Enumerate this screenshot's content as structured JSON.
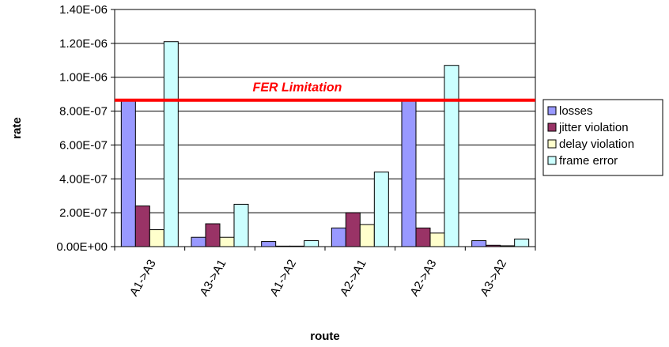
{
  "chart_data": {
    "type": "bar",
    "title": "",
    "xlabel": "route",
    "ylabel": "rate",
    "ylim": [
      0,
      1.4e-06
    ],
    "y_ticks": [
      "0.00E+00",
      "2.00E-07",
      "4.00E-07",
      "6.00E-07",
      "8.00E-07",
      "1.00E-06",
      "1.20E-06",
      "1.40E-06"
    ],
    "y_tick_values": [
      0,
      2e-07,
      4e-07,
      6e-07,
      8e-07,
      1e-06,
      1.2e-06,
      1.4e-06
    ],
    "grid": "horizontal",
    "legend_position": "right",
    "categories": [
      "A1->A3",
      "A3->A1",
      "A1->A2",
      "A2->A1",
      "A2->A3",
      "A3->A2"
    ],
    "series": [
      {
        "name": "losses",
        "color": "#9999ff",
        "values": [
          8.6e-07,
          5.5e-08,
          3e-08,
          1.1e-07,
          8.7e-07,
          3.5e-08
        ]
      },
      {
        "name": "jitter violation",
        "color": "#993366",
        "values": [
          2.4e-07,
          1.35e-07,
          3e-09,
          2e-07,
          1.1e-07,
          8e-09
        ]
      },
      {
        "name": "delay violation",
        "color": "#ffffcc",
        "values": [
          1e-07,
          5.5e-08,
          3e-09,
          1.3e-07,
          8e-08,
          5e-09
        ]
      },
      {
        "name": "frame error",
        "color": "#ccffff",
        "values": [
          1.21e-06,
          2.5e-07,
          3.5e-08,
          4.4e-07,
          1.07e-06,
          4.5e-08
        ]
      }
    ],
    "reference_line": {
      "label": "FER Limitation",
      "value": 8.6e-07,
      "color": "#ff0000"
    }
  }
}
